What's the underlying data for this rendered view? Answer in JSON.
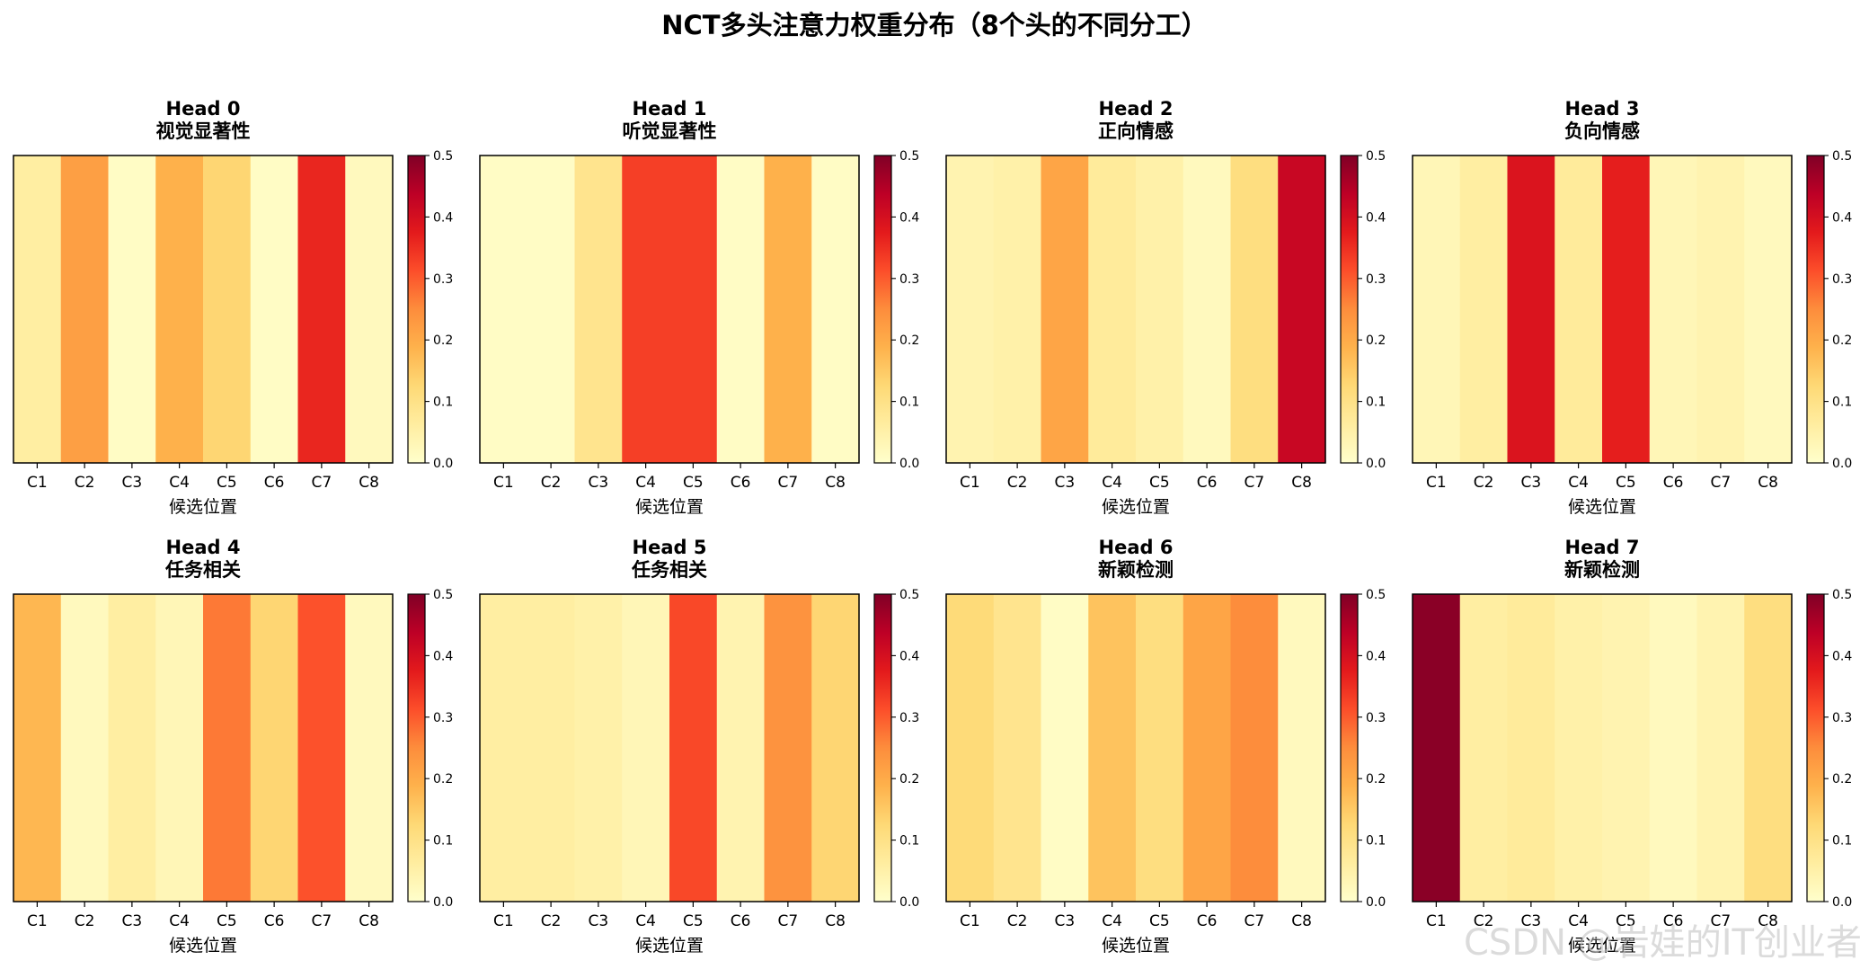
{
  "title": "NCT多头注意力权重分布（8个头的不同分工）",
  "watermark": "CSDN @岩娃的IT创业者",
  "colorscale": {
    "name": "YlOrRd",
    "range": [
      0,
      0.5
    ],
    "ticks": [
      "0.0",
      "0.1",
      "0.2",
      "0.3",
      "0.4",
      "0.5"
    ],
    "stops": [
      "#ffffcc",
      "#ffeda0",
      "#fed976",
      "#feb24c",
      "#fd8d3c",
      "#fc4e2a",
      "#e31a1c",
      "#bd0026",
      "#800026"
    ]
  },
  "chart_data": [
    {
      "type": "heatmap",
      "title": "Head 0",
      "subtitle": "视觉显著性",
      "xlabel": "候选位置",
      "categories": [
        "C1",
        "C2",
        "C3",
        "C4",
        "C5",
        "C6",
        "C7",
        "C8"
      ],
      "values": [
        0.06,
        0.22,
        0.01,
        0.19,
        0.13,
        0.01,
        0.36,
        0.02
      ],
      "vmin": 0,
      "vmax": 0.5
    },
    {
      "type": "heatmap",
      "title": "Head 1",
      "subtitle": "听觉显著性",
      "xlabel": "候选位置",
      "categories": [
        "C1",
        "C2",
        "C3",
        "C4",
        "C5",
        "C6",
        "C7",
        "C8"
      ],
      "values": [
        0.01,
        0.01,
        0.09,
        0.33,
        0.33,
        0.01,
        0.19,
        0.01
      ],
      "vmin": 0,
      "vmax": 0.5
    },
    {
      "type": "heatmap",
      "title": "Head 2",
      "subtitle": "正向情感",
      "xlabel": "候选位置",
      "categories": [
        "C1",
        "C2",
        "C3",
        "C4",
        "C5",
        "C6",
        "C7",
        "C8"
      ],
      "values": [
        0.04,
        0.05,
        0.21,
        0.07,
        0.05,
        0.02,
        0.11,
        0.42
      ],
      "vmin": 0,
      "vmax": 0.5
    },
    {
      "type": "heatmap",
      "title": "Head 3",
      "subtitle": "负向情感",
      "xlabel": "候选位置",
      "categories": [
        "C1",
        "C2",
        "C3",
        "C4",
        "C5",
        "C6",
        "C7",
        "C8"
      ],
      "values": [
        0.03,
        0.06,
        0.39,
        0.07,
        0.37,
        0.03,
        0.04,
        0.02
      ],
      "vmin": 0,
      "vmax": 0.5
    },
    {
      "type": "heatmap",
      "title": "Head 4",
      "subtitle": "任务相关",
      "xlabel": "候选位置",
      "categories": [
        "C1",
        "C2",
        "C3",
        "C4",
        "C5",
        "C6",
        "C7",
        "C8"
      ],
      "values": [
        0.18,
        0.02,
        0.06,
        0.03,
        0.27,
        0.13,
        0.31,
        0.02
      ],
      "vmin": 0,
      "vmax": 0.5
    },
    {
      "type": "heatmap",
      "title": "Head 5",
      "subtitle": "任务相关",
      "xlabel": "候选位置",
      "categories": [
        "C1",
        "C2",
        "C3",
        "C4",
        "C5",
        "C6",
        "C7",
        "C8"
      ],
      "values": [
        0.06,
        0.06,
        0.05,
        0.03,
        0.32,
        0.04,
        0.24,
        0.13
      ],
      "vmin": 0,
      "vmax": 0.5
    },
    {
      "type": "heatmap",
      "title": "Head 6",
      "subtitle": "新颖检测",
      "xlabel": "候选位置",
      "categories": [
        "C1",
        "C2",
        "C3",
        "C4",
        "C5",
        "C6",
        "C7",
        "C8"
      ],
      "values": [
        0.12,
        0.09,
        0.01,
        0.16,
        0.11,
        0.21,
        0.25,
        0.02
      ],
      "vmin": 0,
      "vmax": 0.5
    },
    {
      "type": "heatmap",
      "title": "Head 7",
      "subtitle": "新颖检测",
      "xlabel": "候选位置",
      "categories": [
        "C1",
        "C2",
        "C3",
        "C4",
        "C5",
        "C6",
        "C7",
        "C8"
      ],
      "values": [
        0.49,
        0.06,
        0.07,
        0.05,
        0.04,
        0.02,
        0.04,
        0.11
      ],
      "vmin": 0,
      "vmax": 0.5
    }
  ]
}
